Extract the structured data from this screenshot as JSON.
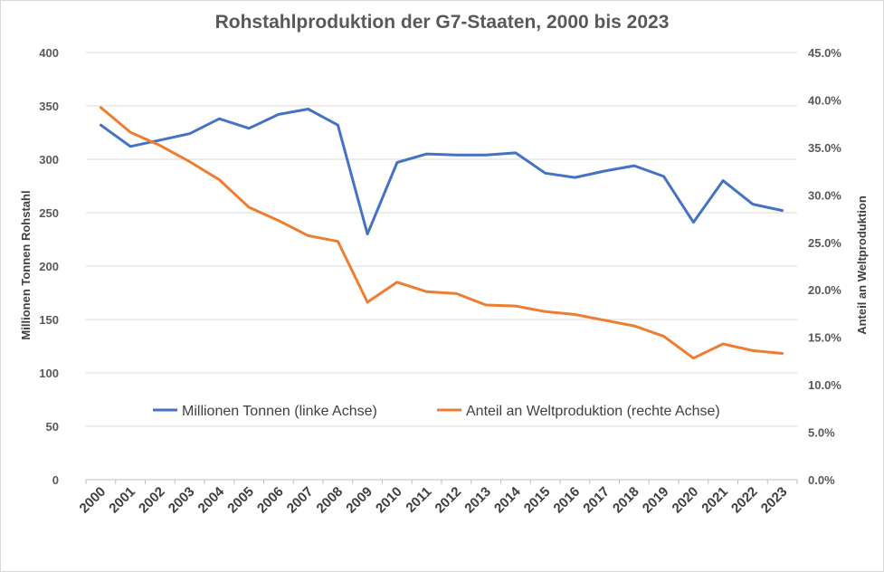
{
  "chart_data": {
    "type": "line",
    "title": "Rohstahlproduktion der G7-Staaten, 2000 bis 2023",
    "ylabel": "Millionen Tonnen Rohstahl",
    "y2label": "Anteil an Weltproduktion",
    "ylim": [
      0,
      400
    ],
    "y2lim": [
      0,
      45
    ],
    "yticks": [
      "0",
      "50",
      "100",
      "150",
      "200",
      "250",
      "300",
      "350",
      "400"
    ],
    "y2ticks": [
      "0.0%",
      "5.0%",
      "10.0%",
      "15.0%",
      "20.0%",
      "25.0%",
      "30.0%",
      "35.0%",
      "40.0%",
      "45.0%"
    ],
    "x": [
      "2000",
      "2001",
      "2002",
      "2003",
      "2004",
      "2005",
      "2006",
      "2007",
      "2008",
      "2009",
      "2010",
      "2011",
      "2012",
      "2013",
      "2014",
      "2015",
      "2016",
      "2017",
      "2018",
      "2019",
      "2020",
      "2021",
      "2022",
      "2023"
    ],
    "series": [
      {
        "name": "Millionen Tonnen (linke Achse)",
        "axis": "left",
        "color": "#4472c4",
        "values": [
          332,
          312,
          318,
          324,
          338,
          329,
          342,
          347,
          332,
          230,
          297,
          305,
          304,
          304,
          306,
          287,
          283,
          289,
          294,
          284,
          241,
          280,
          258,
          252
        ]
      },
      {
        "name": "Anteil an Weltproduktion (rechte Achse)",
        "axis": "right",
        "color": "#ed7d31",
        "values": [
          39.2,
          36.6,
          35.2,
          33.5,
          31.6,
          28.7,
          27.3,
          25.7,
          25.1,
          18.7,
          20.8,
          19.8,
          19.6,
          18.4,
          18.3,
          17.7,
          17.4,
          16.8,
          16.2,
          15.1,
          12.8,
          14.3,
          13.6,
          13.3
        ]
      }
    ],
    "legend_position": "center"
  }
}
